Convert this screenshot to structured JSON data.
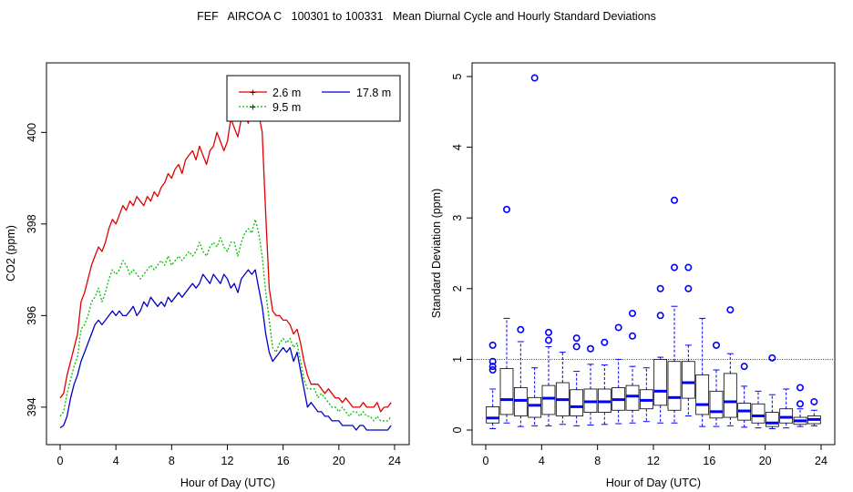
{
  "title": "FEF   AIRCOA C   100301 to 100331   Mean Diurnal Cycle and Hourly Standard Deviations",
  "chart_data": [
    {
      "type": "line",
      "xlabel": "Hour of Day (UTC)",
      "ylabel": "CO2 (ppm)",
      "xlim": [
        0,
        24
      ],
      "ylim": [
        393.5,
        401.2
      ],
      "xticks": [
        0,
        4,
        8,
        12,
        16,
        20,
        24
      ],
      "yticks": [
        394,
        396,
        398,
        400
      ],
      "legend": {
        "position": "top-right"
      },
      "series": [
        {
          "name": "2.6 m",
          "color": "#e00000",
          "marker": "+",
          "x": [
            0,
            0.25,
            0.5,
            0.75,
            1,
            1.25,
            1.5,
            1.75,
            2,
            2.25,
            2.5,
            2.75,
            3,
            3.25,
            3.5,
            3.75,
            4,
            4.25,
            4.5,
            4.75,
            5,
            5.25,
            5.5,
            5.75,
            6,
            6.25,
            6.5,
            6.75,
            7,
            7.25,
            7.5,
            7.75,
            8,
            8.25,
            8.5,
            8.75,
            9,
            9.25,
            9.5,
            9.75,
            10,
            10.25,
            10.5,
            10.75,
            11,
            11.25,
            11.5,
            11.75,
            12,
            12.25,
            12.5,
            12.75,
            13,
            13.25,
            13.5,
            13.75,
            14,
            14.25,
            14.5,
            14.75,
            15,
            15.25,
            15.5,
            15.75,
            16,
            16.25,
            16.5,
            16.75,
            17,
            17.25,
            17.5,
            17.75,
            18,
            18.25,
            18.5,
            18.75,
            19,
            19.25,
            19.5,
            19.75,
            20,
            20.25,
            20.5,
            20.75,
            21,
            21.25,
            21.5,
            21.75,
            22,
            22.25,
            22.5,
            22.75,
            23,
            23.25,
            23.5,
            23.75
          ],
          "y": [
            394.2,
            394.3,
            394.7,
            395.0,
            395.3,
            395.6,
            396.3,
            396.5,
            396.8,
            397.1,
            397.3,
            397.5,
            397.4,
            397.6,
            397.9,
            398.1,
            398.0,
            398.2,
            398.4,
            398.3,
            398.5,
            398.4,
            398.6,
            398.5,
            398.4,
            398.6,
            398.5,
            398.7,
            398.6,
            398.8,
            398.9,
            399.1,
            399.0,
            399.2,
            399.3,
            399.1,
            399.4,
            399.5,
            399.6,
            399.4,
            399.7,
            399.5,
            399.3,
            399.6,
            399.7,
            400.0,
            399.8,
            399.6,
            399.8,
            400.3,
            400.1,
            399.9,
            400.3,
            400.4,
            400.2,
            400.6,
            401.0,
            400.4,
            400.0,
            398.2,
            396.6,
            396.1,
            396.0,
            396.0,
            395.9,
            395.9,
            395.8,
            395.6,
            395.7,
            395.4,
            395.0,
            394.7,
            394.5,
            394.5,
            394.5,
            394.4,
            394.3,
            394.4,
            394.3,
            394.2,
            394.2,
            394.1,
            394.2,
            394.1,
            394.0,
            394.0,
            394.0,
            394.1,
            394.0,
            394.0,
            394.0,
            394.1,
            393.9,
            394.0,
            394.0,
            394.1
          ]
        },
        {
          "name": "9.5 m",
          "color": "#00c000",
          "marker": "+",
          "x": [
            0,
            0.25,
            0.5,
            0.75,
            1,
            1.25,
            1.5,
            1.75,
            2,
            2.25,
            2.5,
            2.75,
            3,
            3.25,
            3.5,
            3.75,
            4,
            4.25,
            4.5,
            4.75,
            5,
            5.25,
            5.5,
            5.75,
            6,
            6.25,
            6.5,
            6.75,
            7,
            7.25,
            7.5,
            7.75,
            8,
            8.25,
            8.5,
            8.75,
            9,
            9.25,
            9.5,
            9.75,
            10,
            10.25,
            10.5,
            10.75,
            11,
            11.25,
            11.5,
            11.75,
            12,
            12.25,
            12.5,
            12.75,
            13,
            13.25,
            13.5,
            13.75,
            14,
            14.25,
            14.5,
            14.75,
            15,
            15.25,
            15.5,
            15.75,
            16,
            16.25,
            16.5,
            16.75,
            17,
            17.25,
            17.5,
            17.75,
            18,
            18.25,
            18.5,
            18.75,
            19,
            19.25,
            19.5,
            19.75,
            20,
            20.25,
            20.5,
            20.75,
            21,
            21.25,
            21.5,
            21.75,
            22,
            22.25,
            22.5,
            22.75,
            23,
            23.25,
            23.5,
            23.75
          ],
          "y": [
            393.8,
            393.9,
            394.3,
            394.6,
            394.9,
            395.1,
            395.7,
            395.8,
            396.0,
            396.3,
            396.4,
            396.6,
            396.3,
            396.5,
            396.8,
            397.0,
            396.9,
            397.0,
            397.2,
            397.1,
            396.9,
            397.0,
            396.9,
            396.8,
            396.9,
            397.0,
            397.1,
            397.0,
            397.1,
            397.2,
            397.1,
            397.3,
            397.1,
            397.2,
            397.3,
            397.2,
            397.3,
            397.4,
            397.3,
            397.4,
            397.6,
            397.4,
            397.3,
            397.5,
            397.6,
            397.5,
            397.7,
            397.5,
            397.4,
            397.6,
            397.6,
            397.3,
            397.6,
            397.8,
            397.9,
            397.8,
            398.1,
            397.8,
            397.3,
            396.5,
            395.9,
            395.3,
            395.2,
            395.4,
            395.5,
            395.4,
            395.5,
            395.3,
            395.4,
            395.0,
            394.6,
            394.4,
            394.4,
            394.4,
            394.2,
            394.3,
            394.2,
            394.1,
            394.0,
            394.0,
            393.9,
            394.0,
            393.9,
            393.8,
            393.9,
            393.9,
            393.8,
            393.9,
            393.8,
            393.8,
            393.7,
            393.8,
            393.7,
            393.7,
            393.7,
            393.8
          ]
        },
        {
          "name": "17.8 m",
          "color": "#0000c8",
          "marker": "",
          "x": [
            0,
            0.25,
            0.5,
            0.75,
            1,
            1.25,
            1.5,
            1.75,
            2,
            2.25,
            2.5,
            2.75,
            3,
            3.25,
            3.5,
            3.75,
            4,
            4.25,
            4.5,
            4.75,
            5,
            5.25,
            5.5,
            5.75,
            6,
            6.25,
            6.5,
            6.75,
            7,
            7.25,
            7.5,
            7.75,
            8,
            8.25,
            8.5,
            8.75,
            9,
            9.25,
            9.5,
            9.75,
            10,
            10.25,
            10.5,
            10.75,
            11,
            11.25,
            11.5,
            11.75,
            12,
            12.25,
            12.5,
            12.75,
            13,
            13.25,
            13.5,
            13.75,
            14,
            14.25,
            14.5,
            14.75,
            15,
            15.25,
            15.5,
            15.75,
            16,
            16.25,
            16.5,
            16.75,
            17,
            17.25,
            17.5,
            17.75,
            18,
            18.25,
            18.5,
            18.75,
            19,
            19.25,
            19.5,
            19.75,
            20,
            20.25,
            20.5,
            20.75,
            21,
            21.25,
            21.5,
            21.75,
            22,
            22.25,
            22.5,
            22.75,
            23,
            23.25,
            23.5,
            23.75
          ],
          "y": [
            393.55,
            393.6,
            393.8,
            394.2,
            394.5,
            394.7,
            395.0,
            395.2,
            395.4,
            395.6,
            395.8,
            395.9,
            395.8,
            395.9,
            396.0,
            396.1,
            396.0,
            396.1,
            396.0,
            396.0,
            396.1,
            396.2,
            396.0,
            396.1,
            396.3,
            396.2,
            396.4,
            396.3,
            396.2,
            396.3,
            396.2,
            396.4,
            396.3,
            396.4,
            396.5,
            396.4,
            396.5,
            396.6,
            396.7,
            396.6,
            396.7,
            396.9,
            396.8,
            396.7,
            396.9,
            396.8,
            396.7,
            396.9,
            396.8,
            396.6,
            396.7,
            396.5,
            396.8,
            396.9,
            397.0,
            396.9,
            397.0,
            396.6,
            396.2,
            395.6,
            395.2,
            395.0,
            395.1,
            395.2,
            395.3,
            395.2,
            395.3,
            395.0,
            395.2,
            394.8,
            394.4,
            394.0,
            394.1,
            394.0,
            393.9,
            393.9,
            393.8,
            393.8,
            393.7,
            393.7,
            393.7,
            393.6,
            393.6,
            393.6,
            393.6,
            393.5,
            393.6,
            393.6,
            393.5,
            393.5,
            393.5,
            393.5,
            393.5,
            393.5,
            393.5,
            393.6
          ]
        }
      ]
    },
    {
      "type": "box",
      "xlabel": "Hour of Day (UTC)",
      "ylabel": "Standard Deviation (ppm)",
      "xlim": [
        0,
        24
      ],
      "ylim": [
        0,
        5
      ],
      "xticks": [
        0,
        4,
        8,
        12,
        16,
        20,
        24
      ],
      "yticks": [
        0,
        1,
        2,
        3,
        4,
        5
      ],
      "reference_line": 1,
      "boxes": [
        {
          "hour": 0.5,
          "whisker_low": 0.02,
          "q1": 0.1,
          "median": 0.17,
          "q3": 0.33,
          "whisker_high": 0.58,
          "outliers": [
            0.85,
            0.9,
            0.97,
            1.2
          ]
        },
        {
          "hour": 1.5,
          "whisker_low": 0.1,
          "q1": 0.22,
          "median": 0.43,
          "q3": 0.87,
          "whisker_high": 1.58,
          "outliers": [
            3.12
          ]
        },
        {
          "hour": 2.5,
          "whisker_low": 0.05,
          "q1": 0.2,
          "median": 0.42,
          "q3": 0.6,
          "whisker_high": 1.25,
          "outliers": [
            1.42
          ]
        },
        {
          "hour": 3.5,
          "whisker_low": 0.06,
          "q1": 0.18,
          "median": 0.35,
          "q3": 0.46,
          "whisker_high": 0.88,
          "outliers": [
            4.98
          ]
        },
        {
          "hour": 4.5,
          "whisker_low": 0.06,
          "q1": 0.22,
          "median": 0.45,
          "q3": 0.63,
          "whisker_high": 1.18,
          "outliers": [
            1.27,
            1.38
          ]
        },
        {
          "hour": 5.5,
          "whisker_low": 0.08,
          "q1": 0.2,
          "median": 0.43,
          "q3": 0.67,
          "whisker_high": 1.1,
          "outliers": []
        },
        {
          "hour": 6.5,
          "whisker_low": 0.06,
          "q1": 0.2,
          "median": 0.33,
          "q3": 0.57,
          "whisker_high": 0.83,
          "outliers": [
            1.18,
            1.3
          ]
        },
        {
          "hour": 7.5,
          "whisker_low": 0.07,
          "q1": 0.25,
          "median": 0.4,
          "q3": 0.58,
          "whisker_high": 0.93,
          "outliers": [
            1.15
          ]
        },
        {
          "hour": 8.5,
          "whisker_low": 0.08,
          "q1": 0.25,
          "median": 0.4,
          "q3": 0.58,
          "whisker_high": 0.92,
          "outliers": [
            1.24
          ]
        },
        {
          "hour": 9.5,
          "whisker_low": 0.09,
          "q1": 0.28,
          "median": 0.43,
          "q3": 0.6,
          "whisker_high": 1.0,
          "outliers": [
            1.45
          ]
        },
        {
          "hour": 10.5,
          "whisker_low": 0.1,
          "q1": 0.28,
          "median": 0.48,
          "q3": 0.63,
          "whisker_high": 0.9,
          "outliers": [
            1.33,
            1.65
          ]
        },
        {
          "hour": 11.5,
          "whisker_low": 0.12,
          "q1": 0.3,
          "median": 0.42,
          "q3": 0.57,
          "whisker_high": 0.88,
          "outliers": []
        },
        {
          "hour": 12.5,
          "whisker_low": 0.1,
          "q1": 0.35,
          "median": 0.55,
          "q3": 1.0,
          "whisker_high": 1.03,
          "outliers": [
            1.62,
            2.0
          ]
        },
        {
          "hour": 13.5,
          "whisker_low": 0.1,
          "q1": 0.28,
          "median": 0.46,
          "q3": 0.97,
          "whisker_high": 1.75,
          "outliers": [
            2.3,
            3.25
          ]
        },
        {
          "hour": 14.5,
          "whisker_low": 0.2,
          "q1": 0.45,
          "median": 0.67,
          "q3": 0.97,
          "whisker_high": 1.2,
          "outliers": [
            2.0,
            2.3
          ]
        },
        {
          "hour": 15.5,
          "whisker_low": 0.05,
          "q1": 0.22,
          "median": 0.36,
          "q3": 0.78,
          "whisker_high": 1.58,
          "outliers": []
        },
        {
          "hour": 16.5,
          "whisker_low": 0.05,
          "q1": 0.17,
          "median": 0.26,
          "q3": 0.55,
          "whisker_high": 0.85,
          "outliers": [
            1.2
          ]
        },
        {
          "hour": 17.5,
          "whisker_low": 0.06,
          "q1": 0.18,
          "median": 0.4,
          "q3": 0.8,
          "whisker_high": 1.08,
          "outliers": [
            1.7
          ]
        },
        {
          "hour": 18.5,
          "whisker_low": 0.04,
          "q1": 0.14,
          "median": 0.27,
          "q3": 0.38,
          "whisker_high": 0.62,
          "outliers": [
            0.9
          ]
        },
        {
          "hour": 19.5,
          "whisker_low": 0.03,
          "q1": 0.1,
          "median": 0.2,
          "q3": 0.37,
          "whisker_high": 0.55,
          "outliers": []
        },
        {
          "hour": 20.5,
          "whisker_low": 0.02,
          "q1": 0.05,
          "median": 0.1,
          "q3": 0.25,
          "whisker_high": 0.5,
          "outliers": [
            1.02
          ]
        },
        {
          "hour": 21.5,
          "whisker_low": 0.03,
          "q1": 0.1,
          "median": 0.18,
          "q3": 0.3,
          "whisker_high": 0.58,
          "outliers": []
        },
        {
          "hour": 22.5,
          "whisker_low": 0.05,
          "q1": 0.08,
          "median": 0.13,
          "q3": 0.18,
          "whisker_high": 0.3,
          "outliers": [
            0.37,
            0.6
          ]
        },
        {
          "hour": 23.5,
          "whisker_low": 0.06,
          "q1": 0.09,
          "median": 0.15,
          "q3": 0.2,
          "whisker_high": 0.28,
          "outliers": [
            0.4
          ]
        }
      ]
    }
  ]
}
